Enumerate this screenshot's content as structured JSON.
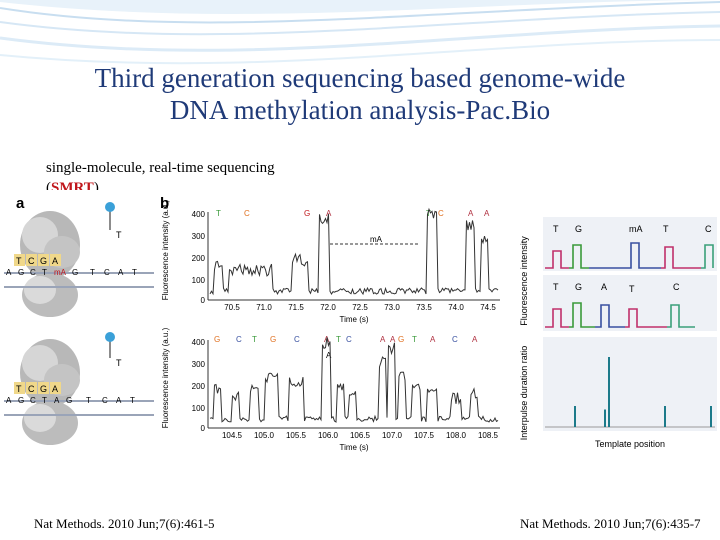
{
  "slide": {
    "title_line1": "Third generation sequencing based genome-wide",
    "title_line2": "DNA methylation analysis-Pac.Bio",
    "subtitle_line1": "single-molecule, real-time sequencing",
    "subtitle_paren_open": "(",
    "subtitle_smrt": "SMRT",
    "subtitle_paren_close": ")",
    "citation_left": "Nat Methods. 2010 Jun;7(6):461-5",
    "citation_right": "Nat Methods. 2010 Jun;7(6):435-7",
    "title_color": "#1f3a78",
    "accent_color": "#c0161b"
  },
  "figure_left": {
    "panel_a_label": "a",
    "panel_b_label": "b",
    "template_top_row1": [
      "T",
      "C",
      "G",
      "A"
    ],
    "template_top_row2": [
      "A",
      "G",
      "C",
      "T",
      "mA",
      "G",
      "T",
      "C",
      "A",
      "T"
    ],
    "template_bottom_row1": [
      "T",
      "C",
      "G",
      "A"
    ],
    "template_bottom_row2": [
      "A",
      "G",
      "C",
      "T",
      "A",
      "G",
      "T",
      "C",
      "A",
      "T"
    ],
    "polymerase_label": "T",
    "ylabel": "Fluorescence intensity (a.u.)",
    "xlabel": "Time (s)",
    "top_trace": {
      "yticks": [
        "400",
        "300",
        "200",
        "100",
        "0"
      ],
      "xticks": [
        "70.5",
        "71.0",
        "71.5",
        "72.0",
        "72.5",
        "73.0",
        "73.5",
        "74.0",
        "74.5"
      ],
      "bases": [
        "T",
        "C",
        "G",
        "A",
        "T",
        "C",
        "A",
        "A"
      ],
      "annotation": "mA"
    },
    "bottom_trace": {
      "yticks": [
        "400",
        "300",
        "200",
        "100",
        "0"
      ],
      "xticks": [
        "104.5",
        "105.0",
        "105.5",
        "106.0",
        "106.5",
        "107.0",
        "107.5",
        "108.0",
        "108.5"
      ],
      "bases": [
        "G",
        "C",
        "T",
        "G",
        "C",
        "A",
        "T",
        "C",
        "A",
        "A",
        "G",
        "T",
        "A",
        "C",
        "A"
      ],
      "annotation": "A"
    }
  },
  "figure_right": {
    "ylabel_top": "Fluorescence intensity",
    "ylabel_bottom": "Interpulse duration ratio",
    "xlabel": "Template position",
    "row1_bases": [
      "T",
      "G",
      "mA",
      "T",
      "C"
    ],
    "row2_bases": [
      "T",
      "G",
      "A",
      "T",
      "C"
    ],
    "ipd_ratio_values": [
      0.3,
      0.25,
      1.0,
      0.3,
      0.3
    ]
  },
  "trace_colors": {
    "A": "#b03040",
    "C": "#3850a0",
    "G": "#e07020",
    "T": "#3a9a3a",
    "other": "#222222"
  }
}
